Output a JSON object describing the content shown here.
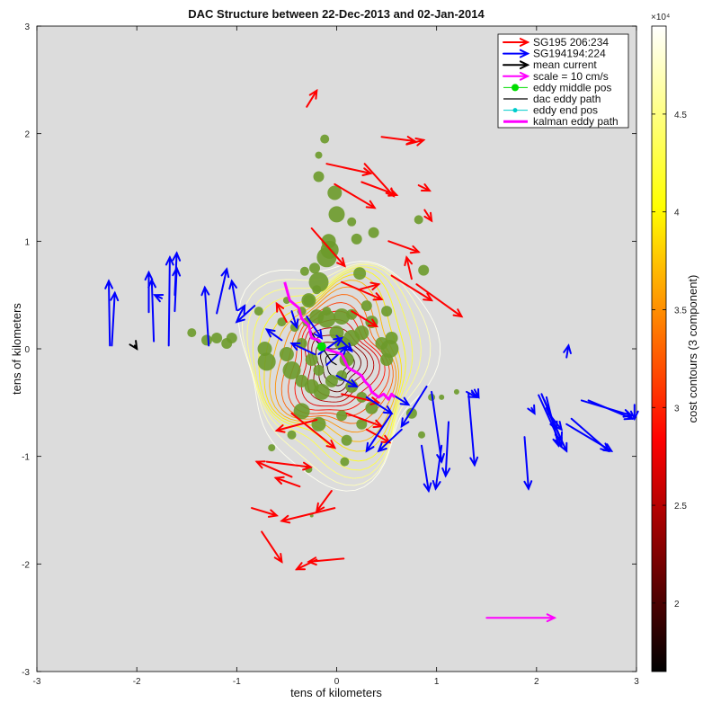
{
  "chart_data": {
    "type": "scatter",
    "title": "DAC Structure between 22-Dec-2013 and 02-Jan-2014",
    "xlabel": "tens of kilometers",
    "ylabel": "tens of kilometers",
    "xlim": [
      -3,
      3
    ],
    "ylim": [
      -3,
      3
    ],
    "xticks": [
      "-3",
      "-2",
      "-1",
      "0",
      "1",
      "2",
      "3"
    ],
    "yticks": [
      "-3",
      "-2",
      "-1",
      "0",
      "1",
      "2",
      "3"
    ],
    "background": "#dcdcdc",
    "grid": false,
    "legend_position": "top-right",
    "legend": [
      {
        "label": "SG195 206:234",
        "color": "#ff0000",
        "style": "arrow"
      },
      {
        "label": "SG194194:224",
        "color": "#0000ff",
        "style": "arrow"
      },
      {
        "label": "mean current",
        "color": "#000000",
        "style": "arrow"
      },
      {
        "label": "scale = 10 cm/s",
        "color": "#ff00ff",
        "style": "arrow"
      },
      {
        "label": "eddy middle pos",
        "color": "#00dd00",
        "style": "dot"
      },
      {
        "label": "dac eddy path",
        "color": "#000000",
        "style": "line"
      },
      {
        "label": "eddy end pos",
        "color": "#00cccc",
        "style": "small-dot"
      },
      {
        "label": "kalman eddy path",
        "color": "#ff00ff",
        "style": "thick-line"
      }
    ],
    "colorbar": {
      "label": "cost contours (3 component)",
      "range": [
        16500,
        49500
      ],
      "ticks": [
        "2",
        "2.5",
        "3",
        "3.5",
        "4",
        "4.5"
      ],
      "tick_values": [
        20000,
        25000,
        30000,
        35000,
        40000,
        45000
      ],
      "exponent": "×10⁴",
      "colormap": "hot"
    },
    "series": [
      {
        "name": "SG195 206:234",
        "color": "#ff0000",
        "arrows": [
          [
            -0.3,
            2.25,
            -0.2,
            2.4
          ],
          [
            0.45,
            1.97,
            0.78,
            1.93
          ],
          [
            0.7,
            1.9,
            0.87,
            1.94
          ],
          [
            -0.1,
            1.72,
            0.34,
            1.63
          ],
          [
            0.28,
            1.72,
            0.57,
            1.42
          ],
          [
            -0.02,
            1.53,
            0.38,
            1.31
          ],
          [
            0.25,
            1.55,
            0.6,
            1.43
          ],
          [
            0.82,
            1.52,
            0.93,
            1.47
          ],
          [
            0.88,
            1.29,
            0.95,
            1.19
          ],
          [
            0.52,
            1.0,
            0.82,
            0.9
          ],
          [
            -0.25,
            1.12,
            0.08,
            0.77
          ],
          [
            0.55,
            0.68,
            0.95,
            0.45
          ],
          [
            0.05,
            0.62,
            0.45,
            0.46
          ],
          [
            0.8,
            0.6,
            1.25,
            0.3
          ],
          [
            0.75,
            0.65,
            0.7,
            0.85
          ],
          [
            -0.5,
            0.25,
            -0.6,
            0.42
          ],
          [
            0.15,
            0.35,
            0.4,
            0.21
          ],
          [
            0.22,
            0.55,
            0.42,
            0.6
          ],
          [
            -0.45,
            -0.6,
            -0.02,
            -0.92
          ],
          [
            -0.2,
            -0.66,
            -0.6,
            -0.76
          ],
          [
            0.05,
            -0.42,
            0.42,
            -0.5
          ],
          [
            0.1,
            -0.6,
            0.45,
            -0.72
          ],
          [
            0.3,
            -0.75,
            0.53,
            -0.87
          ],
          [
            -0.7,
            -1.05,
            -0.26,
            -1.1
          ],
          [
            -0.45,
            -1.19,
            -0.8,
            -1.05
          ],
          [
            -0.37,
            -1.28,
            -0.61,
            -1.2
          ],
          [
            -0.05,
            -1.32,
            -0.2,
            -1.51
          ],
          [
            -0.02,
            -1.48,
            -0.55,
            -1.6
          ],
          [
            -0.85,
            -1.48,
            -0.6,
            -1.55
          ],
          [
            -0.75,
            -1.7,
            -0.55,
            -1.98
          ],
          [
            -0.2,
            -1.96,
            -0.4,
            -2.05
          ],
          [
            0.07,
            -1.95,
            -0.28,
            -1.98
          ]
        ]
      },
      {
        "name": "SG194194:224",
        "color": "#0000ff",
        "arrows": [
          [
            -2.27,
            0.03,
            -2.28,
            0.63
          ],
          [
            -2.25,
            0.03,
            -2.22,
            0.52
          ],
          [
            -1.88,
            0.34,
            -1.88,
            0.71
          ],
          [
            -1.83,
            0.07,
            -1.85,
            0.64
          ],
          [
            -1.75,
            0.47,
            -1.82,
            0.5
          ],
          [
            -1.68,
            0.03,
            -1.67,
            0.85
          ],
          [
            -1.62,
            0.5,
            -1.6,
            0.89
          ],
          [
            -1.62,
            0.35,
            -1.6,
            0.75
          ],
          [
            -1.28,
            0.03,
            -1.32,
            0.57
          ],
          [
            -1.2,
            0.33,
            -1.1,
            0.74
          ],
          [
            -1.0,
            0.36,
            -1.05,
            0.63
          ],
          [
            -0.97,
            0.32,
            -0.92,
            0.4
          ],
          [
            -0.82,
            0.4,
            -1.0,
            0.25
          ],
          [
            -0.55,
            0.08,
            -0.7,
            0.18
          ],
          [
            -0.45,
            0.35,
            -0.4,
            0.2
          ],
          [
            -0.3,
            0.3,
            -0.15,
            0.1
          ],
          [
            -0.22,
            -0.05,
            -0.45,
            0.05
          ],
          [
            -0.18,
            -0.05,
            0.05,
            0.1
          ],
          [
            0.0,
            0.12,
            0.15,
            -0.02
          ],
          [
            -0.1,
            -0.15,
            0.1,
            0.02
          ],
          [
            0.0,
            -0.25,
            0.2,
            -0.35
          ],
          [
            0.3,
            -0.45,
            0.55,
            -0.6
          ],
          [
            0.55,
            -0.42,
            0.72,
            -0.52
          ],
          [
            0.9,
            -0.35,
            0.65,
            -0.72
          ],
          [
            0.55,
            -0.6,
            0.3,
            -0.95
          ],
          [
            0.65,
            -0.75,
            0.42,
            -0.95
          ],
          [
            1.05,
            -0.9,
            0.99,
            -1.3
          ],
          [
            0.85,
            -0.9,
            0.92,
            -1.32
          ],
          [
            0.95,
            -0.4,
            1.05,
            -1.05
          ],
          [
            1.12,
            -0.68,
            1.09,
            -1.18
          ],
          [
            1.32,
            -0.42,
            1.38,
            -1.08
          ],
          [
            1.88,
            -0.82,
            1.92,
            -1.3
          ],
          [
            2.02,
            -0.43,
            2.25,
            -0.9
          ],
          [
            1.95,
            -0.55,
            1.98,
            -0.6
          ],
          [
            2.35,
            -0.65,
            2.72,
            -0.95
          ],
          [
            2.45,
            -0.48,
            2.95,
            -0.62
          ],
          [
            2.52,
            -0.48,
            2.96,
            -0.65
          ],
          [
            2.08,
            -0.48,
            2.25,
            -0.85
          ],
          [
            2.98,
            -0.52,
            2.98,
            -0.65
          ],
          [
            2.05,
            -0.42,
            2.2,
            -0.75
          ],
          [
            1.3,
            -0.4,
            1.4,
            -0.45
          ],
          [
            2.1,
            -0.55,
            2.3,
            -0.95
          ],
          [
            2.3,
            -0.7,
            2.75,
            -0.95
          ],
          [
            1.38,
            -0.38,
            1.42,
            -0.45
          ],
          [
            2.12,
            -0.6,
            2.25,
            -0.75
          ],
          [
            2.1,
            -0.45,
            2.22,
            -0.9
          ],
          [
            2.3,
            -0.08,
            2.32,
            0.03
          ]
        ]
      },
      {
        "name": "mean current",
        "color": "#000000",
        "arrows": [
          [
            -2.02,
            0.03,
            -2.0,
            0.0
          ]
        ]
      },
      {
        "name": "scale = 10 cm/s",
        "color": "#ff00ff",
        "arrows": [
          [
            1.5,
            -2.5,
            2.18,
            -2.5
          ]
        ]
      }
    ],
    "eddy_middle_pos": [
      -0.15,
      0.02
    ],
    "kalman_eddy_path": [
      [
        -0.52,
        0.62
      ],
      [
        -0.47,
        0.45
      ],
      [
        -0.38,
        0.38
      ],
      [
        -0.35,
        0.28
      ],
      [
        -0.28,
        0.22
      ],
      [
        -0.25,
        0.1
      ],
      [
        -0.18,
        0.08
      ],
      [
        -0.12,
        0.0
      ],
      [
        -0.05,
        -0.02
      ],
      [
        0.05,
        -0.05
      ],
      [
        0.1,
        -0.15
      ],
      [
        0.12,
        -0.18
      ],
      [
        0.2,
        -0.22
      ],
      [
        0.25,
        -0.25
      ],
      [
        0.28,
        -0.3
      ],
      [
        0.33,
        -0.35
      ],
      [
        0.35,
        -0.4
      ],
      [
        0.38,
        -0.42
      ],
      [
        0.42,
        -0.45
      ],
      [
        0.47,
        -0.42
      ],
      [
        0.52,
        -0.47
      ],
      [
        0.55,
        -0.42
      ],
      [
        0.58,
        -0.45
      ]
    ],
    "dac_eddy_path": [
      [
        -0.3,
        0.25
      ],
      [
        -0.25,
        0.15
      ],
      [
        -0.2,
        0.07
      ],
      [
        -0.15,
        0.02
      ],
      [
        -0.1,
        -0.05
      ],
      [
        -0.05,
        -0.12
      ],
      [
        0.0,
        -0.15
      ]
    ],
    "cost_contours": {
      "center": [
        0.0,
        -0.15
      ],
      "levels": [
        17000,
        19000,
        21000,
        23000,
        25000,
        27000,
        29000,
        31000,
        33000,
        35000,
        37000,
        39000,
        41000,
        43000,
        45000,
        47000,
        49000
      ]
    },
    "bubbles": [
      [
        -0.12,
        1.95,
        5
      ],
      [
        -0.18,
        1.8,
        4
      ],
      [
        -0.18,
        1.6,
        6
      ],
      [
        -0.02,
        1.45,
        8
      ],
      [
        0.0,
        1.25,
        9
      ],
      [
        -0.08,
        1.0,
        8
      ],
      [
        -0.07,
        0.92,
        10
      ],
      [
        -0.1,
        0.85,
        11
      ],
      [
        0.2,
        1.02,
        6
      ],
      [
        0.15,
        1.18,
        5
      ],
      [
        0.37,
        1.08,
        6
      ],
      [
        0.82,
        1.2,
        5
      ],
      [
        0.87,
        0.73,
        6
      ],
      [
        0.23,
        0.7,
        7
      ],
      [
        -0.22,
        0.75,
        6
      ],
      [
        -0.18,
        0.62,
        11
      ],
      [
        -0.32,
        0.72,
        5
      ],
      [
        -0.28,
        0.45,
        6
      ],
      [
        -0.35,
        0.35,
        5
      ],
      [
        -0.1,
        0.35,
        5
      ],
      [
        0.15,
        0.32,
        6
      ],
      [
        0.3,
        0.4,
        6
      ],
      [
        0.5,
        0.35,
        6
      ],
      [
        -0.55,
        0.25,
        5
      ],
      [
        -0.42,
        0.2,
        5
      ],
      [
        -0.3,
        0.25,
        5
      ],
      [
        -0.35,
        0.05,
        6
      ],
      [
        -0.2,
        0.3,
        8
      ],
      [
        -0.1,
        0.28,
        10
      ],
      [
        0.0,
        0.15,
        8
      ],
      [
        0.05,
        0.3,
        9
      ],
      [
        0.15,
        0.1,
        9
      ],
      [
        0.25,
        0.15,
        8
      ],
      [
        0.35,
        0.25,
        7
      ],
      [
        0.45,
        0.05,
        7
      ],
      [
        0.55,
        0.1,
        7
      ],
      [
        0.5,
        -0.1,
        7
      ],
      [
        0.53,
        0.0,
        10
      ],
      [
        -0.72,
        0.0,
        8
      ],
      [
        -0.7,
        -0.12,
        10
      ],
      [
        -0.5,
        -0.05,
        8
      ],
      [
        -0.45,
        -0.2,
        10
      ],
      [
        -0.35,
        -0.3,
        7
      ],
      [
        -0.25,
        -0.35,
        8
      ],
      [
        -0.15,
        -0.4,
        9
      ],
      [
        -0.05,
        -0.3,
        7
      ],
      [
        0.05,
        -0.25,
        6
      ],
      [
        0.15,
        -0.35,
        7
      ],
      [
        0.25,
        -0.45,
        6
      ],
      [
        0.35,
        -0.55,
        7
      ],
      [
        -0.35,
        -0.58,
        9
      ],
      [
        -0.18,
        -0.7,
        8
      ],
      [
        0.05,
        -0.62,
        6
      ],
      [
        0.25,
        -0.7,
        6
      ],
      [
        0.1,
        -0.85,
        6
      ],
      [
        -0.45,
        -0.8,
        5
      ],
      [
        -0.28,
        -1.12,
        4
      ],
      [
        -0.65,
        -0.92,
        4
      ],
      [
        0.08,
        -1.05,
        5
      ],
      [
        -0.25,
        -1.55,
        2
      ],
      [
        -1.05,
        0.1,
        6
      ],
      [
        -1.1,
        0.05,
        6
      ],
      [
        -1.2,
        0.1,
        6
      ],
      [
        -1.3,
        0.08,
        6
      ],
      [
        -1.45,
        0.15,
        5
      ],
      [
        -0.78,
        0.35,
        5
      ],
      [
        -0.5,
        0.45,
        4
      ],
      [
        -0.2,
        0.55,
        5
      ],
      [
        1.05,
        -0.45,
        3
      ],
      [
        1.2,
        -0.4,
        3
      ],
      [
        0.95,
        -0.45,
        4
      ],
      [
        0.75,
        -0.6,
        6
      ],
      [
        0.85,
        -0.8,
        4
      ],
      [
        -0.28,
        0.45,
        8
      ],
      [
        0.05,
        0.05,
        8
      ],
      [
        0.1,
        -0.1,
        8
      ],
      [
        -0.18,
        -0.2,
        6
      ],
      [
        -0.25,
        -0.1,
        7
      ]
    ]
  }
}
